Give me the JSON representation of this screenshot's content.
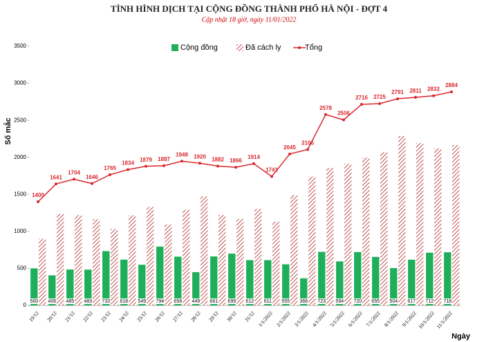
{
  "chart_data": {
    "type": "combo",
    "title": "TÌNH HÌNH DỊCH TẠI CỘNG ĐỒNG THÀNH PHỐ HÀ NỘI - ĐỢT 4",
    "subtitle": "Cập nhật 18 giờ, ngày 11/01/2022",
    "y_label": "Số mắc",
    "x_label": "Ngày",
    "categories": [
      "19/12",
      "20/12",
      "21/12",
      "22/12",
      "23/12",
      "24/12",
      "25/12",
      "26/12",
      "27/12",
      "28/12",
      "29/12",
      "30/12",
      "31/12",
      "1/1/2022",
      "2/1/2022",
      "3/1/2022",
      "4/1/2022",
      "5/1/2022",
      "6/1/2022",
      "7/1/2022",
      "8/1/2022",
      "9/1/2022",
      "10/1/2022",
      "11/1/2022"
    ],
    "series": [
      {
        "name": "Cộng đồng",
        "type": "bar",
        "color": "#1fae5a",
        "hatch": false,
        "show_labels": true,
        "values": [
          500,
          406,
          485,
          483,
          733,
          618,
          549,
          794,
          658,
          449,
          661,
          699,
          612,
          611,
          555,
          366,
          723,
          594,
          720,
          655,
          504,
          617,
          712,
          718
        ]
      },
      {
        "name": "Đã cách ly",
        "type": "bar",
        "color": "#c0504d",
        "hatch": true,
        "show_labels": false,
        "values": [
          900,
          1235,
          1219,
          1163,
          1032,
          1216,
          1330,
          1093,
          1290,
          1471,
          1221,
          1167,
          1302,
          1130,
          1490,
          1740,
          1855,
          1912,
          1996,
          2070,
          2287,
          2194,
          2120,
          2166
        ]
      },
      {
        "name": "Tổng",
        "type": "line",
        "color": "#d9262c",
        "hatch": false,
        "show_labels": true,
        "values": [
          1400,
          1641,
          1704,
          1646,
          1765,
          1834,
          1879,
          1887,
          1948,
          1920,
          1882,
          1866,
          1914,
          1741,
          2045,
          2106,
          2578,
          2506,
          2716,
          2725,
          2791,
          2811,
          2832,
          2884
        ]
      }
    ],
    "ylim": [
      0,
      3500
    ],
    "yticks": [
      0,
      500,
      1000,
      1500,
      2000,
      2500,
      3000,
      3500
    ],
    "grid": false,
    "legend": "top"
  }
}
